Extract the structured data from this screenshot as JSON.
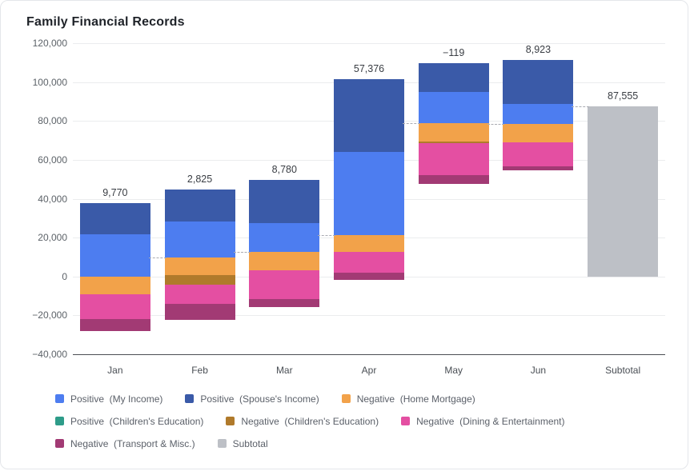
{
  "chart_data": {
    "type": "bar",
    "subtype": "stacked-waterfall",
    "title": "Family Financial Records",
    "categories": [
      "Jan",
      "Feb",
      "Mar",
      "Apr",
      "May",
      "Jun",
      "Subtotal"
    ],
    "y_axis": {
      "min": -40000,
      "max": 120000,
      "tick_step": 20000,
      "ticks": [
        {
          "value": 120000,
          "label": "120,000"
        },
        {
          "value": 100000,
          "label": "100,000"
        },
        {
          "value": 80000,
          "label": "80,000"
        },
        {
          "value": 60000,
          "label": "60,000"
        },
        {
          "value": 40000,
          "label": "40,000"
        },
        {
          "value": 20000,
          "label": "20,000"
        },
        {
          "value": 0,
          "label": "0"
        },
        {
          "value": -20000,
          "label": "−20,000"
        },
        {
          "value": -40000,
          "label": "−40,000"
        }
      ]
    },
    "colors": {
      "my_income": "#4D7DF0",
      "spouse_income": "#3A5AA8",
      "home_mortgage": "#F2A24A",
      "children_edu_pos": "#2E9C89",
      "children_edu_neg": "#B07A2B",
      "dining": "#E44FA2",
      "transport": "#A23A74",
      "subtotal": "#BDC0C6"
    },
    "months": [
      {
        "label": "Jan",
        "baseline": 0,
        "net": 9770,
        "net_label": "9,770",
        "positive": [
          {
            "key": "my_income",
            "value": 21800
          },
          {
            "key": "spouse_income",
            "value": 16060
          }
        ],
        "negative": [
          {
            "key": "home_mortgage",
            "value": -9050
          },
          {
            "key": "dining",
            "value": -12760
          },
          {
            "key": "transport",
            "value": -6280
          }
        ]
      },
      {
        "label": "Feb",
        "baseline": 9770,
        "net": 2825,
        "net_label": "2,825",
        "positive": [
          {
            "key": "my_income",
            "value": 18630
          },
          {
            "key": "spouse_income",
            "value": 16460
          }
        ],
        "negative": [
          {
            "key": "home_mortgage",
            "value": -9000
          },
          {
            "key": "children_edu_neg",
            "value": -4900
          },
          {
            "key": "dining",
            "value": -9870
          },
          {
            "key": "transport",
            "value": -8495
          }
        ]
      },
      {
        "label": "Mar",
        "baseline": 12595,
        "net": 8780,
        "net_label": "8,780",
        "positive": [
          {
            "key": "my_income",
            "value": 14980
          },
          {
            "key": "spouse_income",
            "value": 22230
          }
        ],
        "negative": [
          {
            "key": "home_mortgage",
            "value": -9300
          },
          {
            "key": "dining",
            "value": -14810
          },
          {
            "key": "transport",
            "value": -4320
          }
        ]
      },
      {
        "label": "Apr",
        "baseline": 21375,
        "net": 57376,
        "net_label": "57,376",
        "positive": [
          {
            "key": "my_income",
            "value": 42800
          },
          {
            "key": "spouse_income",
            "value": 37480
          }
        ],
        "negative": [
          {
            "key": "home_mortgage",
            "value": -8650
          },
          {
            "key": "dining",
            "value": -10650
          },
          {
            "key": "transport",
            "value": -3604
          }
        ]
      },
      {
        "label": "May",
        "baseline": 78751,
        "net": -119,
        "net_label": "−119",
        "positive": [
          {
            "key": "my_income",
            "value": 16310
          },
          {
            "key": "spouse_income",
            "value": 14820
          }
        ],
        "negative": [
          {
            "key": "home_mortgage",
            "value": -9200
          },
          {
            "key": "children_edu_neg",
            "value": -1000
          },
          {
            "key": "dining",
            "value": -16520
          },
          {
            "key": "transport",
            "value": -4529
          }
        ]
      },
      {
        "label": "Jun",
        "baseline": 78632,
        "net": 8923,
        "net_label": "8,923",
        "positive": [
          {
            "key": "my_income",
            "value": 10260
          },
          {
            "key": "spouse_income",
            "value": 22630
          }
        ],
        "negative": [
          {
            "key": "home_mortgage",
            "value": -9490
          },
          {
            "key": "dining",
            "value": -12350
          },
          {
            "key": "transport",
            "value": -2127
          }
        ]
      }
    ],
    "subtotal": {
      "label": "Subtotal",
      "value": 87555,
      "value_label": "87,555",
      "key": "subtotal"
    },
    "connectors": [
      9770,
      12595,
      21375,
      78751,
      78632,
      87555
    ],
    "legend_position": "bottom",
    "grid": true
  },
  "legend": {
    "rows": [
      [
        {
          "key": "my_income",
          "label": "Positive  (My Income)"
        },
        {
          "key": "spouse_income",
          "label": "Positive  (Spouse's Income)"
        },
        {
          "key": "home_mortgage",
          "label": "Negative  (Home Mortgage)"
        }
      ],
      [
        {
          "key": "children_edu_pos",
          "label": "Positive  (Children's Education)"
        },
        {
          "key": "children_edu_neg",
          "label": "Negative  (Children's Education)"
        },
        {
          "key": "dining",
          "label": "Negative  (Dining & Entertainment)"
        }
      ],
      [
        {
          "key": "transport",
          "label": "Negative  (Transport & Misc.)"
        },
        {
          "key": "subtotal",
          "label": "Subtotal"
        }
      ]
    ]
  }
}
